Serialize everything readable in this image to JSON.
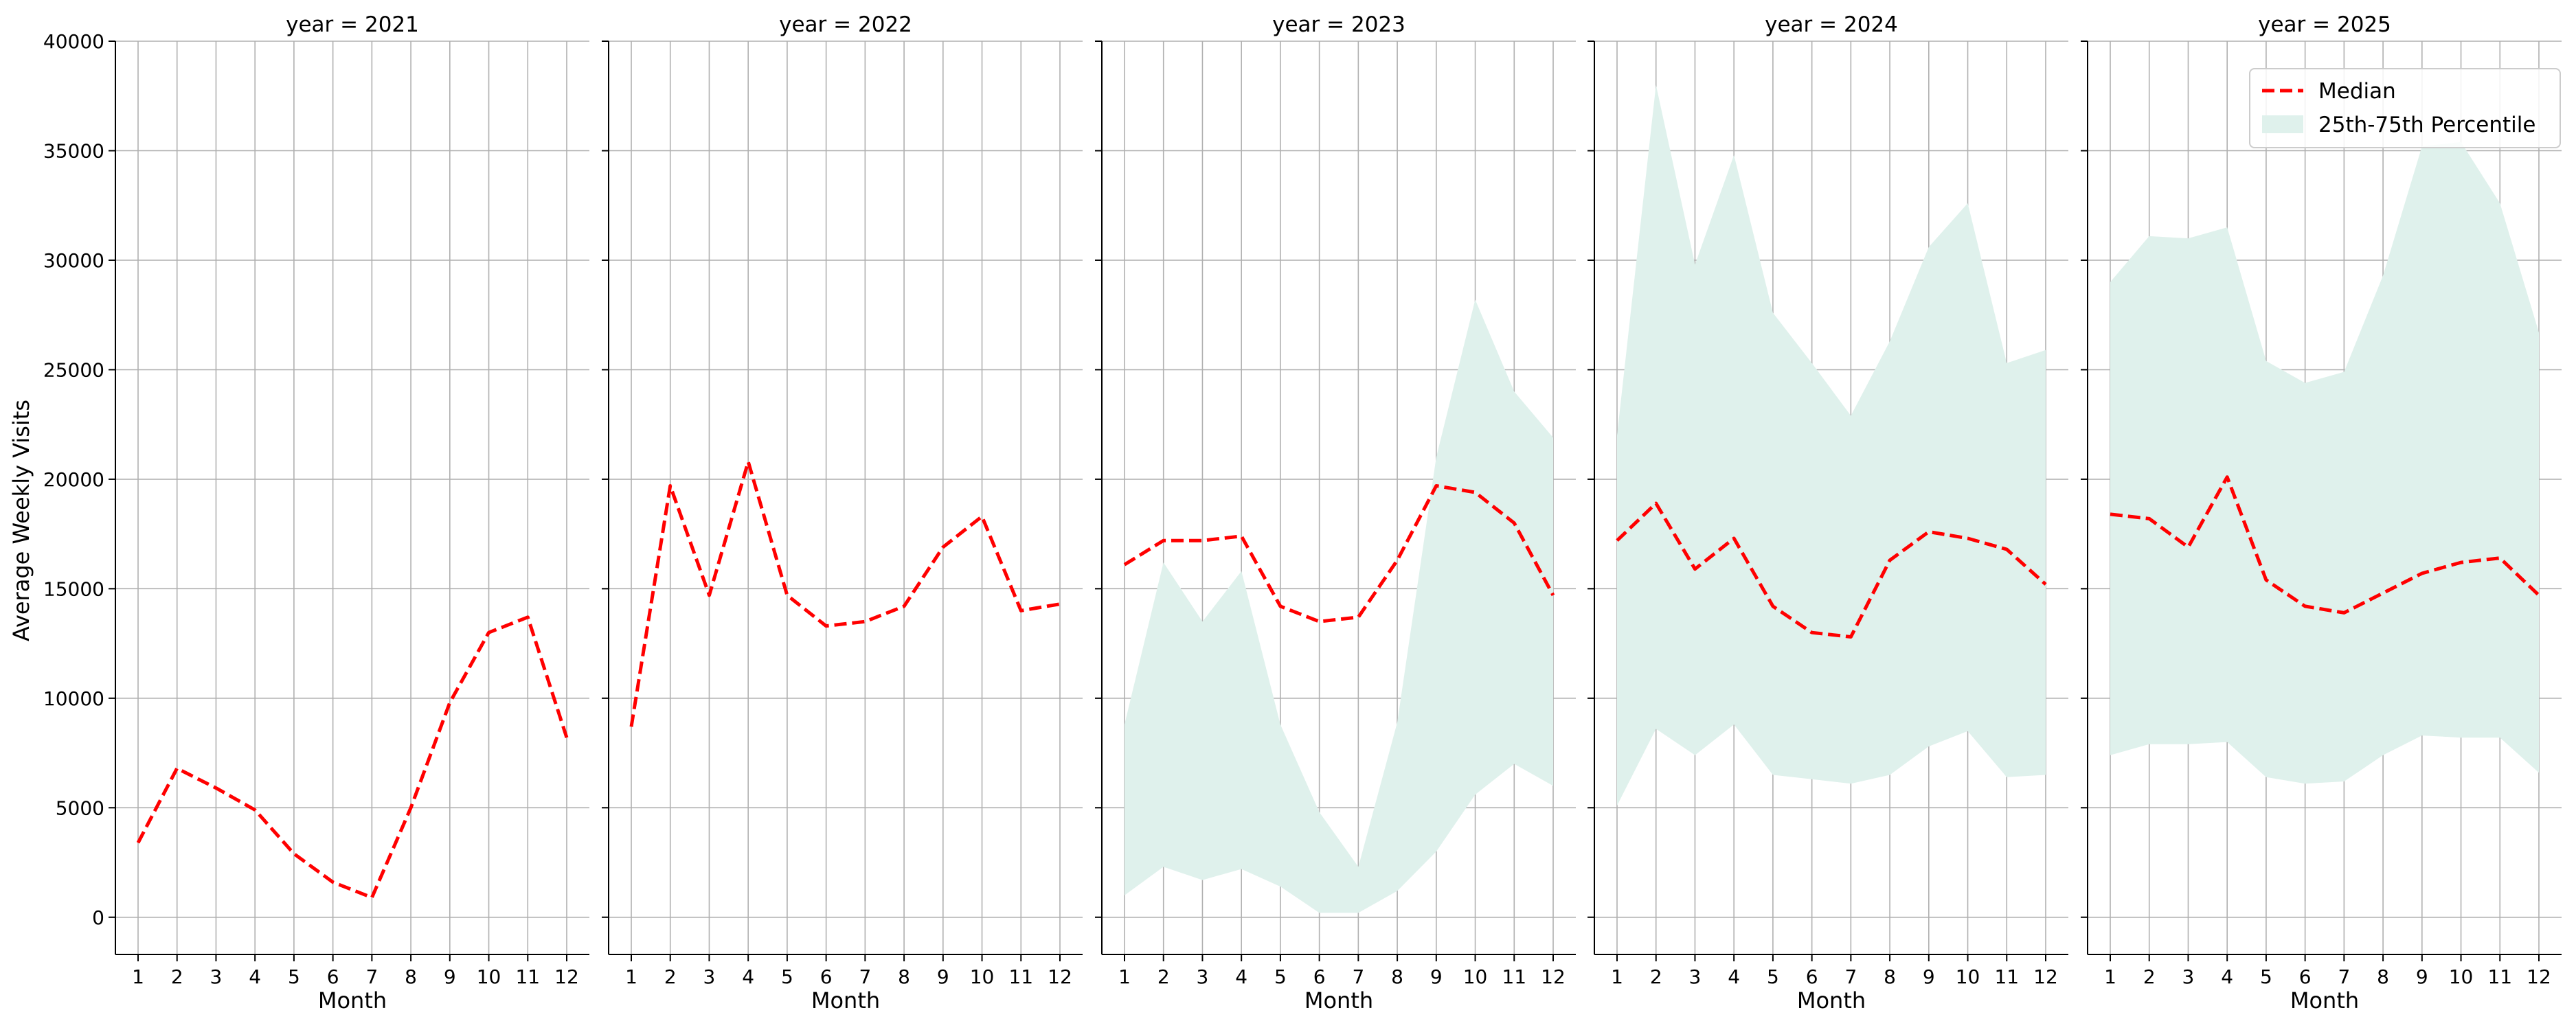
{
  "chart_data": {
    "type": "line",
    "ylabel": "Average Weekly Visits",
    "xlabel": "Month",
    "ylim": [
      -1700,
      40000
    ],
    "y_ticks": [
      0,
      5000,
      10000,
      15000,
      20000,
      25000,
      30000,
      35000,
      40000
    ],
    "x_ticks": [
      1,
      2,
      3,
      4,
      5,
      6,
      7,
      8,
      9,
      10,
      11,
      12
    ],
    "grid": true,
    "legend": {
      "placement": "top-right",
      "entries": [
        {
          "label": "Median",
          "style": "dashed-line"
        },
        {
          "label": "25th-75th Percentile",
          "style": "band"
        }
      ]
    },
    "colors": {
      "median": "#ff0000",
      "band": "#dff1ec"
    },
    "panels": [
      {
        "title": "year = 2021",
        "x": [
          1,
          2,
          3,
          4,
          5,
          6,
          7,
          8,
          9,
          10,
          11,
          12
        ],
        "median": [
          3400,
          6800,
          5900,
          4900,
          2900,
          1600,
          900,
          5000,
          9800,
          13000,
          13700,
          8200
        ],
        "p25": [],
        "p75": []
      },
      {
        "title": "year = 2022",
        "x": [
          1,
          2,
          3,
          4,
          5,
          6,
          7,
          8,
          9,
          10,
          11,
          12
        ],
        "median": [
          8700,
          19700,
          14700,
          20800,
          14700,
          13300,
          13500,
          14200,
          16900,
          18300,
          14000,
          14300
        ],
        "p25": [],
        "p75": []
      },
      {
        "title": "year = 2023",
        "x": [
          1,
          2,
          3,
          4,
          5,
          6,
          7,
          8,
          9,
          10,
          11,
          12
        ],
        "median": [
          16100,
          17200,
          17200,
          17400,
          14200,
          13500,
          13700,
          16300,
          19700,
          19400,
          18000,
          14700
        ],
        "p25": [
          1000,
          2300,
          1700,
          2200,
          1400,
          200,
          200,
          1200,
          3000,
          5600,
          7000,
          6000
        ],
        "p75": [
          8800,
          16200,
          13500,
          15800,
          8800,
          4800,
          2300,
          8900,
          21000,
          28200,
          24000,
          21900
        ]
      },
      {
        "title": "year = 2024",
        "x": [
          1,
          2,
          3,
          4,
          5,
          6,
          7,
          8,
          9,
          10,
          11,
          12
        ],
        "median": [
          17200,
          18900,
          15900,
          17300,
          14200,
          13000,
          12800,
          16300,
          17600,
          17300,
          16800,
          15200
        ],
        "p25": [
          5100,
          8600,
          7400,
          8800,
          6500,
          6300,
          6100,
          6500,
          7800,
          8500,
          6400,
          6500
        ],
        "p75": [
          22000,
          38000,
          29800,
          34800,
          27600,
          25300,
          22900,
          26300,
          30600,
          32600,
          25300,
          25900
        ]
      },
      {
        "title": "year = 2025",
        "x": [
          1,
          2,
          3,
          4,
          5,
          6,
          7,
          8,
          9,
          10,
          11,
          12
        ],
        "median": [
          18400,
          18200,
          16900,
          20100,
          15400,
          14200,
          13900,
          14800,
          15700,
          16200,
          16400,
          14700
        ],
        "p25": [
          7400,
          7900,
          7900,
          8000,
          6400,
          6100,
          6200,
          7400,
          8300,
          8200,
          8200,
          6600
        ],
        "p75": [
          29000,
          31100,
          31000,
          31500,
          25400,
          24400,
          24900,
          29300,
          35200,
          35400,
          32600,
          26700
        ]
      }
    ]
  }
}
